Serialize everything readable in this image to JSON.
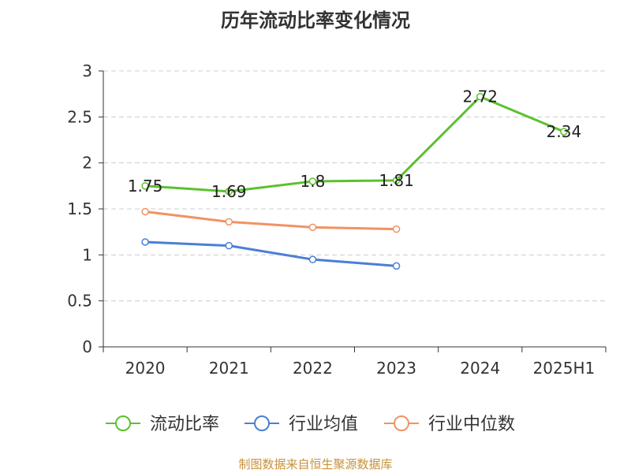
{
  "chart_data": {
    "type": "line",
    "title": "历年流动比率变化情况",
    "categories": [
      "2020",
      "2021",
      "2022",
      "2023",
      "2024",
      "2025H1"
    ],
    "ylim": [
      0,
      3
    ],
    "y_ticks": [
      "0",
      "0.5",
      "1",
      "1.5",
      "2",
      "2.5",
      "3"
    ],
    "grid": true,
    "legend_position": "bottom",
    "series": [
      {
        "name": "流动比率",
        "color": "#5cc12f",
        "values": [
          1.75,
          1.69,
          1.8,
          1.81,
          2.72,
          2.34
        ],
        "labels": [
          "1.75",
          "1.69",
          "1.8",
          "1.81",
          "2.72",
          "2.34"
        ]
      },
      {
        "name": "行业均值",
        "color": "#4a7fd6",
        "values": [
          1.14,
          1.1,
          0.95,
          0.88,
          null,
          null
        ]
      },
      {
        "name": "行业中位数",
        "color": "#f29263",
        "values": [
          1.47,
          1.36,
          1.3,
          1.28,
          null,
          null
        ]
      }
    ]
  },
  "footer": {
    "source": "制图数据来自恒生聚源数据库"
  }
}
